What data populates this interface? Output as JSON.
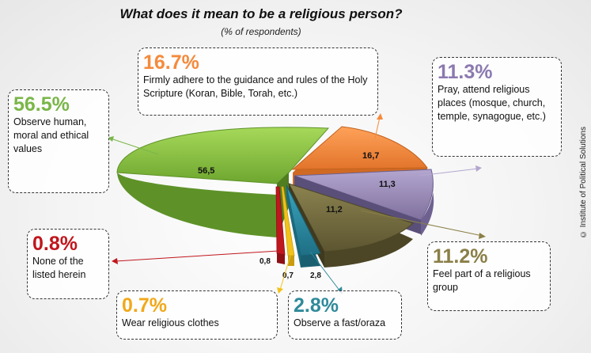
{
  "chart_data": {
    "type": "pie",
    "title": "What does it mean to be a religious person?",
    "subtitle": "(% of respondents)",
    "source": "© Institute of Political Solutions",
    "slices": [
      {
        "value_label": "56,5",
        "percent": "56.5%",
        "value": 56.5,
        "label": "Observe human, moral and ethical values",
        "color": "#8dc63f"
      },
      {
        "value_label": "16,7",
        "percent": "16.7%",
        "value": 16.7,
        "label": "Firmly adhere to the guidance and rules of the Holy Scripture (Koran, Bible, Torah, etc.)",
        "color": "#f58a3c"
      },
      {
        "value_label": "11,3",
        "percent": "11.3%",
        "value": 11.3,
        "label": "Pray, attend religious places (mosque, church, temple, synagogue, etc.)",
        "color": "#9b8bb8"
      },
      {
        "value_label": "11,2",
        "percent": "11.2%",
        "value": 11.2,
        "label": "Feel part of a religious group",
        "color": "#8a7f47"
      },
      {
        "value_label": "2,8",
        "percent": "2.8%",
        "value": 2.8,
        "label": "Observe a fast/oraza",
        "color": "#2f8fa6"
      },
      {
        "value_label": "0,7",
        "percent": "0.7%",
        "value": 0.7,
        "label": "Wear religious clothes",
        "color": "#f2c21b"
      },
      {
        "value_label": "0,8",
        "percent": "0.8%",
        "value": 0.8,
        "label": "None of the listed herein",
        "color": "#c0161d"
      }
    ],
    "percent_colors": [
      "#7ab648",
      "#f58a3c",
      "#8b79b0",
      "#8a7f47",
      "#2f8a9a",
      "#f2a81b",
      "#c0161d"
    ]
  }
}
